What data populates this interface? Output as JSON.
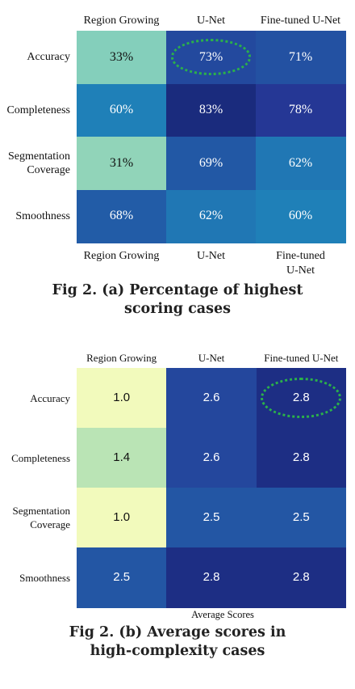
{
  "chart_data": [
    {
      "type": "heatmap",
      "columns": [
        "Region Growing",
        "U-Net",
        "Fine-tuned U-Net"
      ],
      "rows": [
        "Accuracy",
        "Completeness",
        "Segmentation Coverage",
        "Smoothness"
      ],
      "values": [
        [
          33,
          73,
          71
        ],
        [
          60,
          83,
          78
        ],
        [
          31,
          69,
          62
        ],
        [
          68,
          62,
          60
        ]
      ],
      "value_suffix": "%",
      "bottom_labels": [
        "Region Growing",
        "U-Net",
        "Fine-tuned U-Net"
      ],
      "caption": "Fig 2. (a) Percentage of highest scoring cases",
      "highlighted_cell": {
        "row": "Accuracy",
        "column": "U-Net"
      },
      "highlight_color": "#2bb14a",
      "colormap": "YlGnBu"
    },
    {
      "type": "heatmap",
      "columns": [
        "Region Growing",
        "U-Net",
        "Fine-tuned U-Net"
      ],
      "rows": [
        "Accuracy",
        "Completeness",
        "Segmentation Coverage",
        "Smoothness"
      ],
      "values": [
        [
          1.0,
          2.6,
          2.8
        ],
        [
          1.4,
          2.6,
          2.8
        ],
        [
          1.0,
          2.5,
          2.5
        ],
        [
          2.5,
          2.8,
          2.8
        ]
      ],
      "value_suffix": "",
      "xlabel": "Average Scores",
      "caption": "Fig 2. (b) Average scores in high-complexity cases",
      "highlighted_cell": {
        "row": "Accuracy",
        "column": "Fine-tuned U-Net"
      },
      "highlight_color": "#2bb14a",
      "colormap": "YlGnBu"
    }
  ],
  "text": {
    "a": {
      "columns": [
        "Region Growing",
        "U-Net",
        "Fine-tuned U-Net"
      ],
      "rows": [
        [
          "Accuracy"
        ],
        [
          "Completeness"
        ],
        [
          "Segmentation",
          "Coverage"
        ],
        [
          "Smoothness"
        ]
      ],
      "bottom": [
        [
          "Region Growing"
        ],
        [
          "U-Net"
        ],
        [
          "Fine-tuned",
          "U-Net"
        ]
      ],
      "caption_lines": [
        "Fig 2. (a) Percentage of highest",
        "scoring cases"
      ]
    },
    "b": {
      "columns": [
        "Region Growing",
        "U-Net",
        "Fine-tuned U-Net"
      ],
      "rows": [
        [
          "Accuracy"
        ],
        [
          "Completeness"
        ],
        [
          "Segmentation",
          "Coverage"
        ],
        [
          "Smoothness"
        ]
      ],
      "xlabel": "Average Scores",
      "caption_lines": [
        "Fig 2. (b) Average scores in",
        "high-complexity cases"
      ]
    }
  }
}
